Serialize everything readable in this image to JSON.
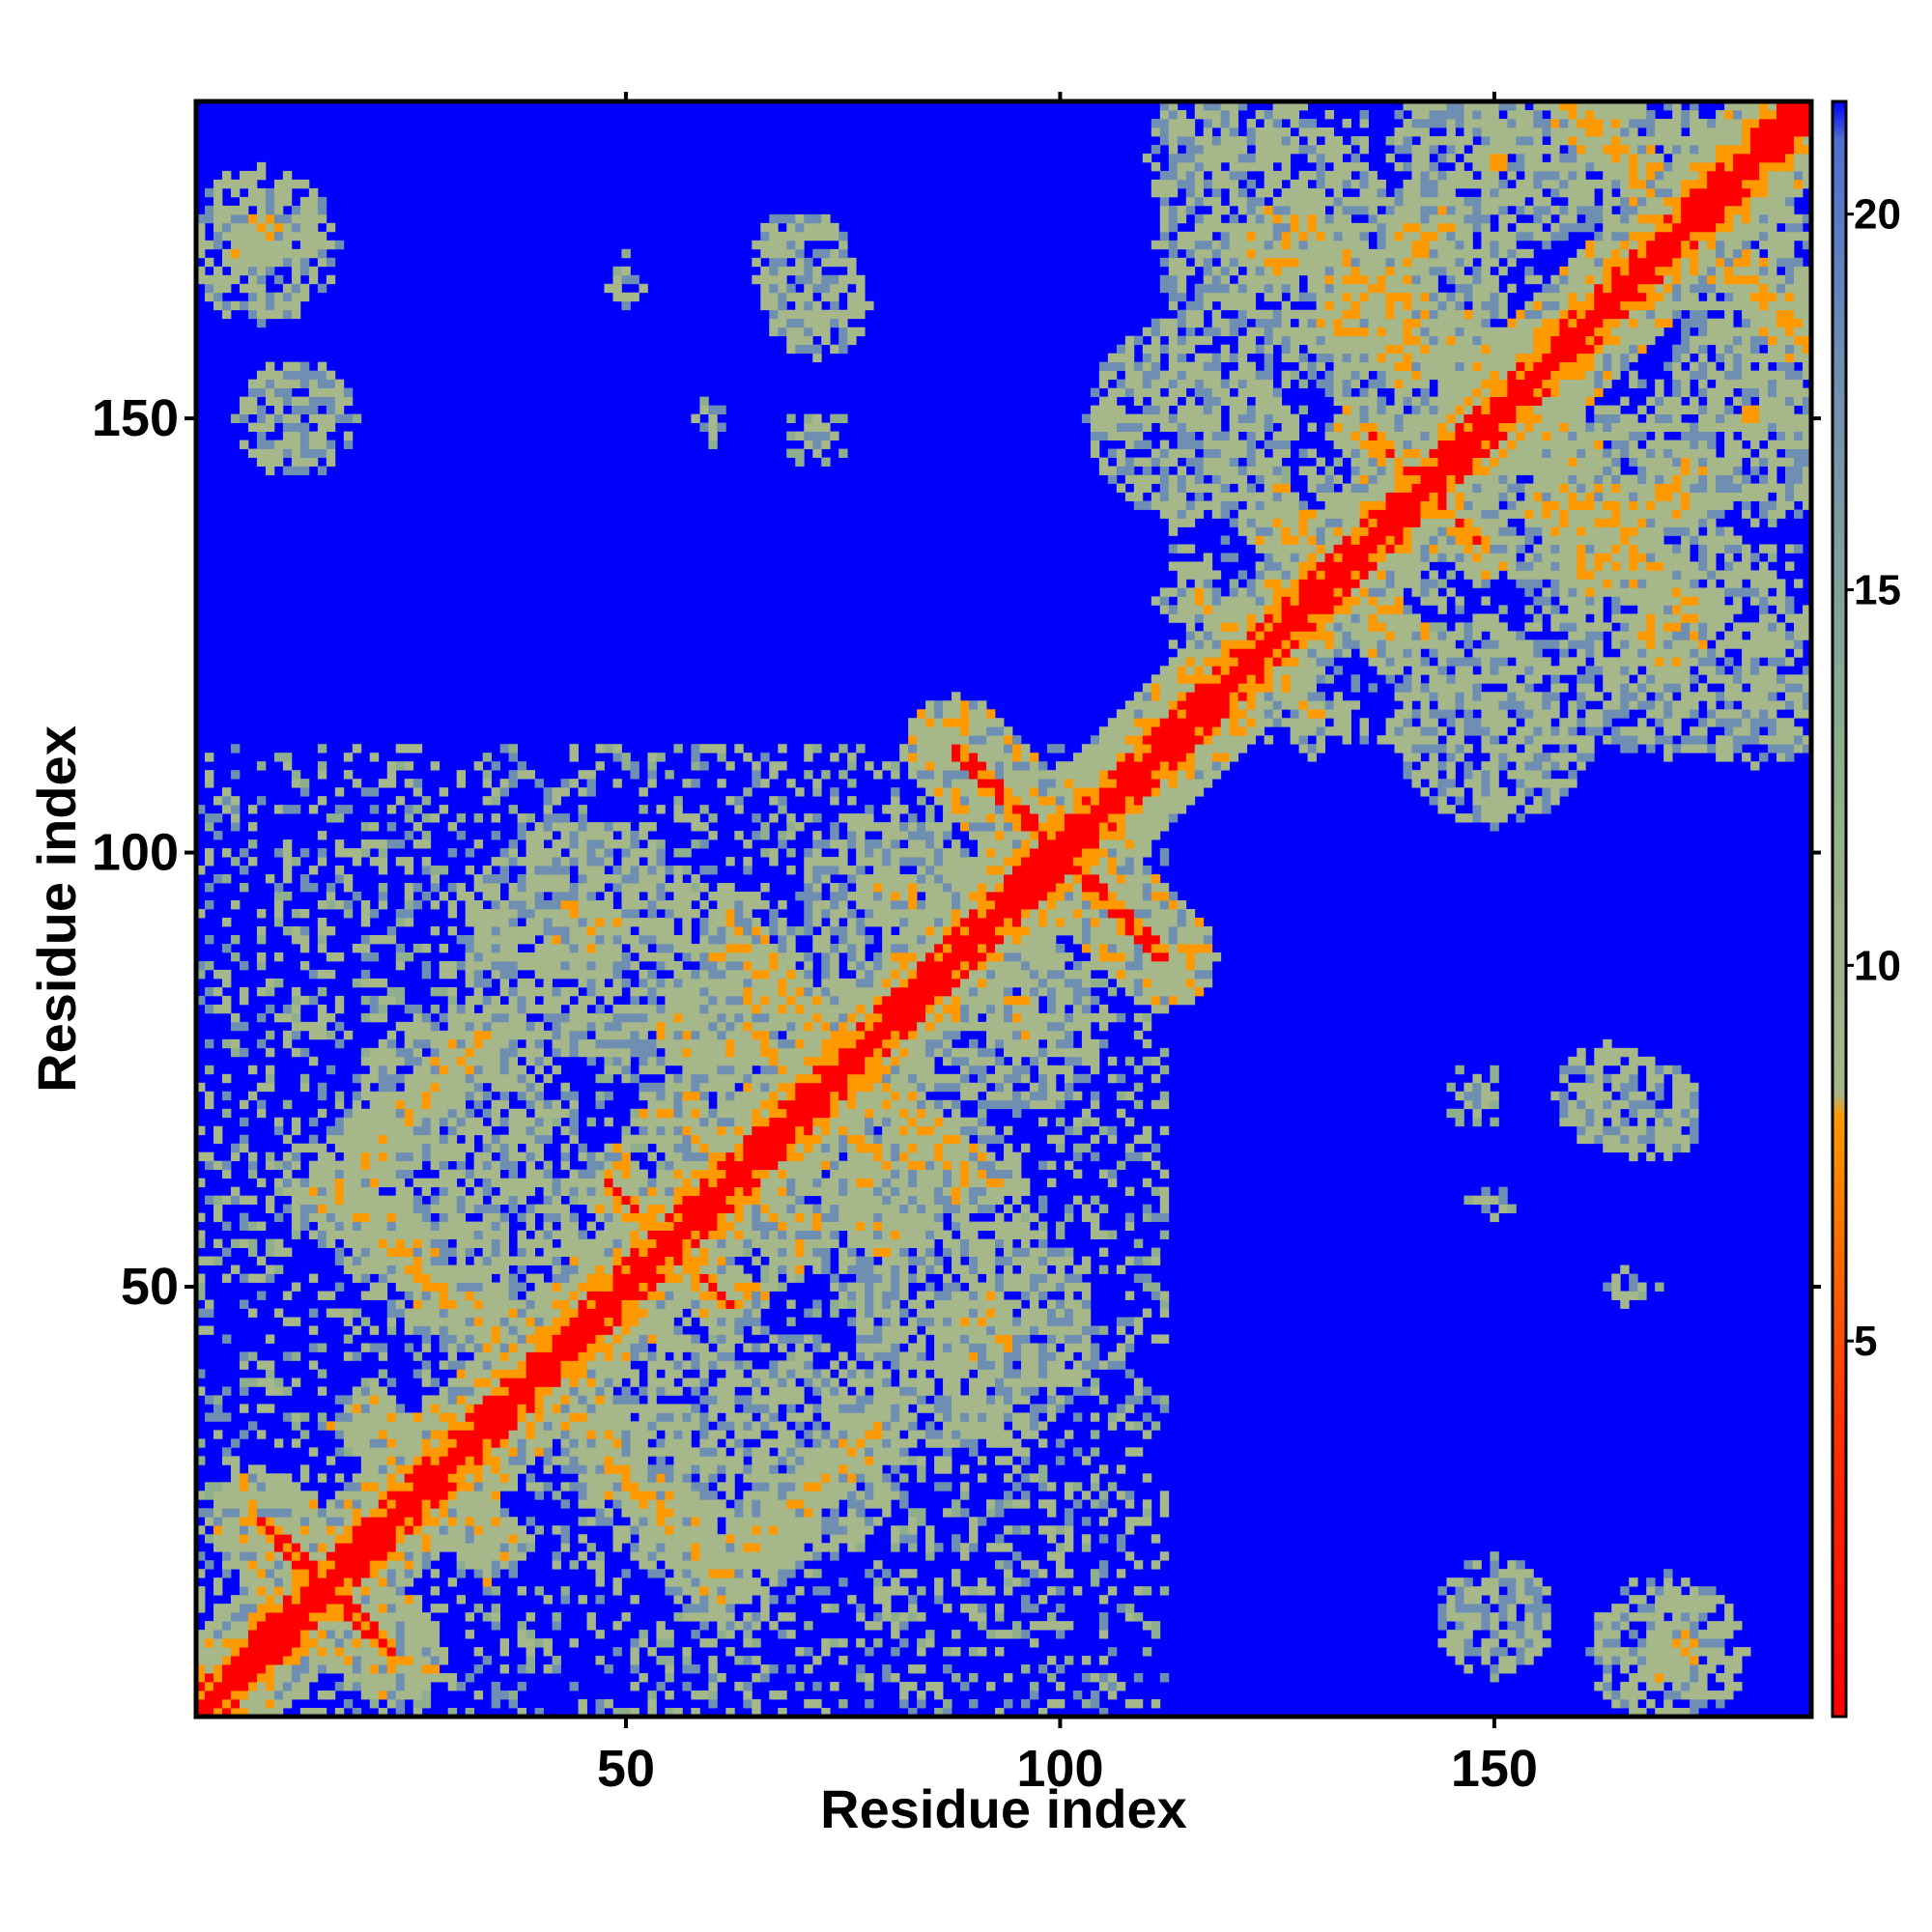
{
  "chart_data": {
    "type": "heatmap",
    "title": "",
    "xlabel": "Residue index",
    "ylabel": "Residue index",
    "n_residues": 186,
    "x_range": [
      1,
      186
    ],
    "y_range": [
      1,
      186
    ],
    "x_ticks": [
      50,
      100,
      150
    ],
    "y_ticks": [
      50,
      100,
      150
    ],
    "colorbar": {
      "range": [
        0,
        21.5
      ],
      "ticks": [
        5,
        10,
        15,
        20
      ],
      "stops": [
        {
          "value": 0,
          "color": "#ff0000"
        },
        {
          "value": 4,
          "color": "#ff3300"
        },
        {
          "value": 8,
          "color": "#ff9900"
        },
        {
          "value": 8.3,
          "color": "#a6b88a"
        },
        {
          "value": 13,
          "color": "#8fae8e"
        },
        {
          "value": 18,
          "color": "#6f8fb2"
        },
        {
          "value": 21,
          "color": "#4f6fd0"
        },
        {
          "value": 21.5,
          "color": "#0000ff"
        }
      ]
    },
    "colors": {
      "background": "#0000ff",
      "diagonal": "#ff0000",
      "contact": "#ff9900",
      "near": "#a6b88a"
    },
    "domains": [
      [
        1,
        112
      ],
      [
        113,
        186
      ]
    ],
    "structures": [
      {
        "kind": "hairpin",
        "i": 8,
        "j": 23,
        "strength": 1.0
      },
      {
        "kind": "hairpin",
        "i": 25,
        "j": 30,
        "strength": 0.9
      },
      {
        "kind": "hairpin",
        "i": 38,
        "j": 42,
        "strength": 0.9
      },
      {
        "kind": "hairpin",
        "i": 52,
        "j": 58,
        "strength": 1.0
      },
      {
        "kind": "hairpin",
        "i": 60,
        "j": 65,
        "strength": 0.9
      },
      {
        "kind": "hairpin",
        "i": 70,
        "j": 73,
        "strength": 0.7
      },
      {
        "kind": "hairpin",
        "i": 121,
        "j": 124,
        "strength": 0.7
      },
      {
        "kind": "hairpin",
        "i": 129,
        "j": 134,
        "strength": 0.9
      },
      {
        "kind": "hairpin",
        "i": 139,
        "j": 145,
        "strength": 1.0
      },
      {
        "kind": "hairpin",
        "i": 149,
        "j": 155,
        "strength": 0.9
      },
      {
        "kind": "antiparallel",
        "i": 8,
        "j": 23,
        "len": 15,
        "strength": 1.0
      },
      {
        "kind": "antiparallel",
        "i": 16,
        "j": 62,
        "len": 14,
        "strength": 0.8
      },
      {
        "kind": "antiparallel",
        "i": 62,
        "j": 90,
        "len": 10,
        "strength": 0.7
      },
      {
        "kind": "antiparallel",
        "i": 88,
        "j": 112,
        "len": 15,
        "strength": 1.0
      },
      {
        "kind": "antiparallel",
        "i": 128,
        "j": 172,
        "len": 14,
        "strength": 0.8
      },
      {
        "kind": "antiparallel",
        "i": 159,
        "j": 186,
        "len": 8,
        "strength": 0.7
      },
      {
        "kind": "parallel",
        "i": 20,
        "j": 64,
        "len": 14,
        "strength": 0.7
      },
      {
        "kind": "parallel",
        "i": 132,
        "j": 160,
        "len": 12,
        "strength": 0.7
      },
      {
        "kind": "blob",
        "i": 60,
        "j": 80,
        "r": 12,
        "strength": 0.6
      },
      {
        "kind": "blob",
        "i": 45,
        "j": 90,
        "r": 14,
        "strength": 0.55
      },
      {
        "kind": "blob",
        "i": 30,
        "j": 70,
        "r": 12,
        "strength": 0.5
      },
      {
        "kind": "blob",
        "i": 35,
        "j": 55,
        "r": 10,
        "strength": 0.5
      },
      {
        "kind": "blob",
        "i": 80,
        "j": 95,
        "r": 10,
        "strength": 0.55
      },
      {
        "kind": "blob",
        "i": 140,
        "j": 160,
        "r": 12,
        "strength": 0.6
      },
      {
        "kind": "blob",
        "i": 125,
        "j": 170,
        "r": 14,
        "strength": 0.55
      },
      {
        "kind": "blob",
        "i": 115,
        "j": 150,
        "r": 12,
        "strength": 0.5
      },
      {
        "kind": "blob",
        "i": 150,
        "j": 180,
        "r": 12,
        "strength": 0.5
      },
      {
        "kind": "blob",
        "i": 120,
        "j": 180,
        "r": 10,
        "strength": 0.45
      },
      {
        "kind": "blob",
        "i": 165,
        "j": 180,
        "r": 10,
        "strength": 0.5
      },
      {
        "kind": "blob",
        "i": 8,
        "j": 170,
        "r": 9,
        "strength": 0.55
      },
      {
        "kind": "blob",
        "i": 12,
        "j": 150,
        "r": 7,
        "strength": 0.4
      },
      {
        "kind": "blob",
        "i": 70,
        "j": 168,
        "r": 6,
        "strength": 0.45
      },
      {
        "kind": "blob",
        "i": 50,
        "j": 165,
        "r": 4,
        "strength": 0.3
      },
      {
        "kind": "blob",
        "i": 72,
        "j": 148,
        "r": 4,
        "strength": 0.3
      },
      {
        "kind": "blob",
        "i": 170,
        "j": 8,
        "r": 9,
        "strength": 0.55
      },
      {
        "kind": "blob",
        "i": 150,
        "j": 12,
        "r": 7,
        "strength": 0.4
      },
      {
        "kind": "blob",
        "i": 163,
        "j": 72,
        "r": 6,
        "strength": 0.45
      },
      {
        "kind": "blob",
        "i": 150,
        "j": 60,
        "r": 4,
        "strength": 0.3
      }
    ]
  }
}
